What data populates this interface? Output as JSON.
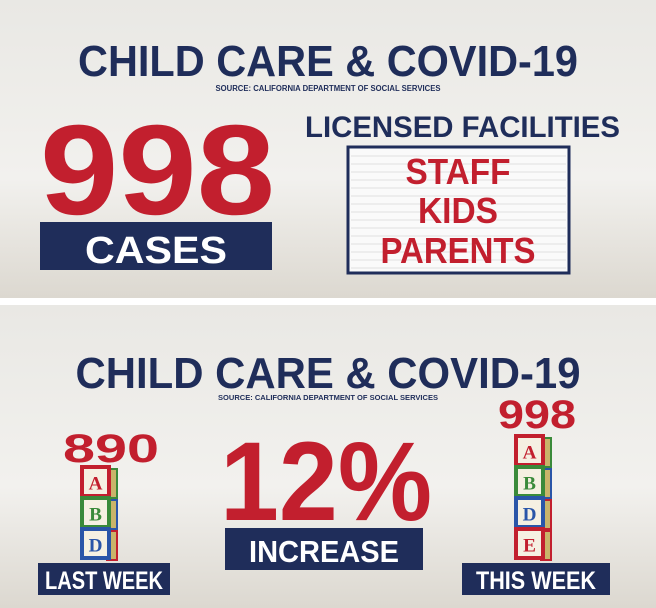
{
  "panels": [
    {
      "title": "CHILD CARE & COVID-19",
      "source": "SOURCE: CALIFORNIA DEPARTMENT OF SOCIAL SERVICES",
      "big_number": "998",
      "number_label": "CASES",
      "facilities_heading": "LICENSED FACILITIES",
      "facilities": [
        "STAFF",
        "KIDS",
        "PARENTS"
      ]
    },
    {
      "title": "CHILD CARE & COVID-19",
      "source": "SOURCE: CALIFORNIA DEPARTMENT OF SOCIAL SERVICES",
      "last_week_value": "890",
      "last_week_label": "LAST WEEK",
      "last_week_blocks": [
        "A",
        "B",
        "D"
      ],
      "change_value": "12%",
      "change_label": "INCREASE",
      "this_week_value": "998",
      "this_week_label": "THIS WEEK",
      "this_week_blocks": [
        "A",
        "B",
        "D",
        "E"
      ]
    }
  ]
}
